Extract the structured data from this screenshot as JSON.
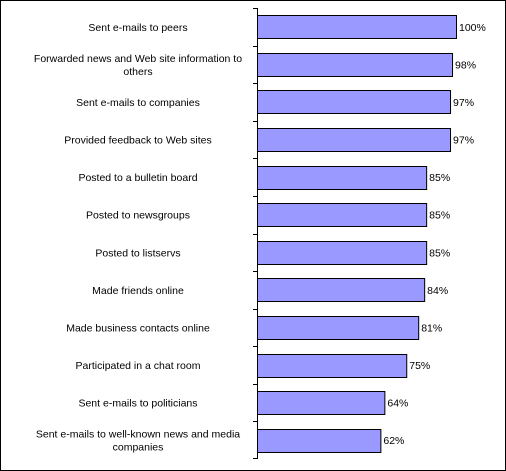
{
  "chart_data": {
    "type": "bar",
    "orientation": "horizontal",
    "title": "",
    "xlabel": "",
    "ylabel": "",
    "xlim": [
      0,
      100
    ],
    "grid": false,
    "legend": "none",
    "bar_color": "#9999ff",
    "bar_edge_color": "#000000",
    "categories": [
      "Sent e-mails to peers",
      "Forwarded news and Web site information to others",
      "Sent e-mails to companies",
      "Provided feedback to Web sites",
      "Posted to a bulletin board",
      "Posted to newsgroups",
      "Posted to listservs",
      "Made friends online",
      "Made business contacts online",
      "Participated in a chat room",
      "Sent e-mails to politicians",
      "Sent e-mails to well-known news and media companies"
    ],
    "category_lines": [
      [
        "Sent e-mails to peers"
      ],
      [
        "Forwarded news and Web site information to",
        "others"
      ],
      [
        "Sent e-mails to companies"
      ],
      [
        "Provided feedback to Web sites"
      ],
      [
        "Posted to a bulletin board"
      ],
      [
        "Posted to newsgroups"
      ],
      [
        "Posted to listservs"
      ],
      [
        "Made friends online"
      ],
      [
        "Made business contacts online"
      ],
      [
        "Participated in a chat room"
      ],
      [
        "Sent e-mails to politicians"
      ],
      [
        "Sent e-mails to well-known news and media",
        "companies"
      ]
    ],
    "values": [
      100,
      98,
      97,
      97,
      85,
      85,
      85,
      84,
      81,
      75,
      64,
      62
    ],
    "value_labels": [
      "100%",
      "98%",
      "97%",
      "97%",
      "85%",
      "85%",
      "85%",
      "84%",
      "81%",
      "75%",
      "64%",
      "62%"
    ]
  }
}
